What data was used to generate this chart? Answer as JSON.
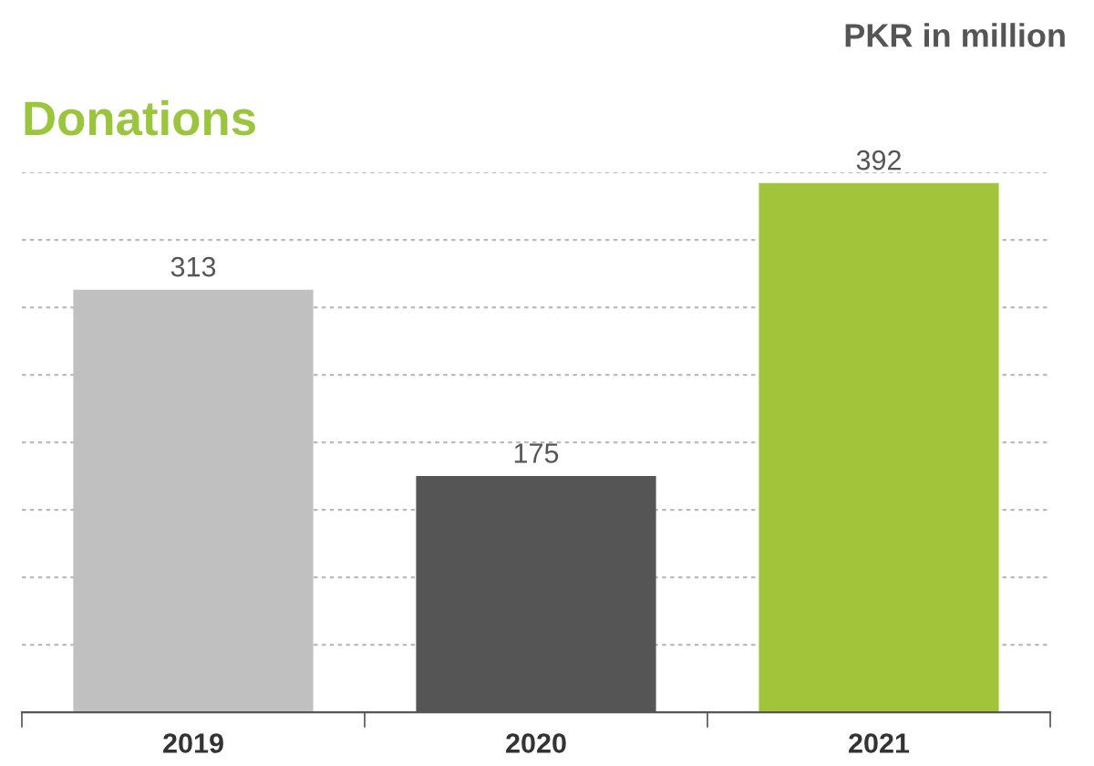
{
  "chart_data": {
    "type": "bar",
    "title": "Donations",
    "ylabel": "PKR in million",
    "categories": [
      "2019",
      "2020",
      "2021"
    ],
    "values": [
      313,
      175,
      392
    ],
    "colors": [
      "#c0c0c0",
      "#555555",
      "#a2c43a"
    ],
    "data_labels": true,
    "ylim": [
      0,
      400
    ],
    "yticks": [
      {
        "value": 50,
        "label": null
      },
      {
        "value": 100,
        "label": null
      },
      {
        "value": 150,
        "label": null
      },
      {
        "value": 200,
        "label": null
      },
      {
        "value": 250,
        "label": null
      },
      {
        "value": 300,
        "label": null
      },
      {
        "value": 350,
        "label": null
      },
      {
        "value": 400,
        "label": null
      }
    ],
    "tick_labels": "x",
    "grid": "y"
  }
}
